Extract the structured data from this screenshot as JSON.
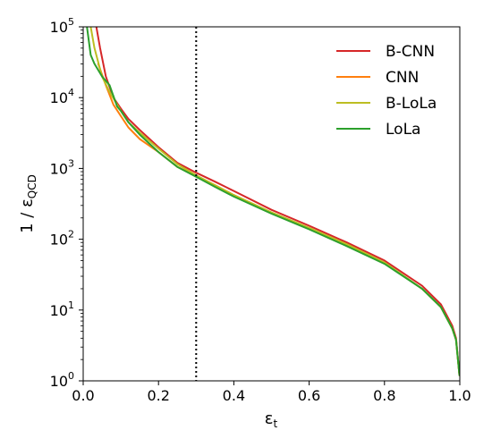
{
  "chart_data": {
    "type": "line",
    "xlabel_main": "ε",
    "xlabel_sub": "t",
    "ylabel_main": "1 / ε",
    "ylabel_sub": "QCD",
    "xlim": [
      0.0,
      1.0
    ],
    "ylim": [
      1,
      100000
    ],
    "yscale": "log",
    "grid": false,
    "legend_position": "top-right",
    "x_ticks": [
      "0.0",
      "0.2",
      "0.4",
      "0.6",
      "0.8",
      "1.0"
    ],
    "y_ticks": [
      {
        "base": "10",
        "exp": "0"
      },
      {
        "base": "10",
        "exp": "1"
      },
      {
        "base": "10",
        "exp": "2"
      },
      {
        "base": "10",
        "exp": "3"
      },
      {
        "base": "10",
        "exp": "4"
      },
      {
        "base": "10",
        "exp": "5"
      }
    ],
    "vline": {
      "x": 0.3,
      "style": "dotted",
      "color": "#000000"
    },
    "series": [
      {
        "name": "B-CNN",
        "color": "#d62728",
        "x": [
          0.035,
          0.045,
          0.06,
          0.08,
          0.1,
          0.12,
          0.15,
          0.2,
          0.25,
          0.3,
          0.35,
          0.4,
          0.5,
          0.6,
          0.7,
          0.8,
          0.9,
          0.95,
          0.98,
          0.99,
          0.999
        ],
        "y": [
          100000,
          50000,
          20000,
          10000,
          7000,
          5000,
          3500,
          2000,
          1200,
          870,
          650,
          480,
          260,
          155,
          90,
          50,
          22,
          12,
          6,
          4,
          1.2
        ]
      },
      {
        "name": "CNN",
        "color": "#ff7f0e",
        "x": [
          0.04,
          0.06,
          0.08,
          0.1,
          0.12,
          0.15,
          0.2,
          0.25,
          0.3,
          0.35,
          0.4,
          0.5,
          0.6,
          0.7,
          0.8,
          0.9,
          0.95,
          0.98,
          0.99,
          0.999
        ],
        "y": [
          30000,
          15000,
          8000,
          5500,
          3800,
          2600,
          1700,
          1050,
          780,
          580,
          420,
          235,
          140,
          82,
          46,
          20,
          11,
          5.5,
          3.8,
          1.2
        ]
      },
      {
        "name": "B-LoLa",
        "color": "#bcbd22",
        "x": [
          0.02,
          0.03,
          0.05,
          0.07,
          0.1,
          0.12,
          0.15,
          0.2,
          0.25,
          0.3,
          0.35,
          0.4,
          0.5,
          0.6,
          0.7,
          0.8,
          0.9,
          0.95,
          0.98,
          0.99,
          0.999
        ],
        "y": [
          100000,
          50000,
          20000,
          12000,
          6500,
          4500,
          3200,
          1900,
          1150,
          800,
          580,
          420,
          240,
          145,
          85,
          47,
          20,
          11,
          5.5,
          3.8,
          1.2
        ]
      },
      {
        "name": "LoLa",
        "color": "#2ca02c",
        "x": [
          0.01,
          0.02,
          0.03,
          0.05,
          0.07,
          0.09,
          0.1,
          0.12,
          0.15,
          0.2,
          0.25,
          0.3,
          0.35,
          0.4,
          0.5,
          0.6,
          0.7,
          0.8,
          0.9,
          0.95,
          0.98,
          0.99,
          0.999
        ],
        "y": [
          100000,
          40000,
          30000,
          20000,
          15000,
          7500,
          6500,
          4500,
          3000,
          1700,
          1050,
          760,
          550,
          400,
          230,
          138,
          80,
          45,
          20,
          11,
          5.5,
          3.8,
          1.2
        ]
      }
    ]
  }
}
